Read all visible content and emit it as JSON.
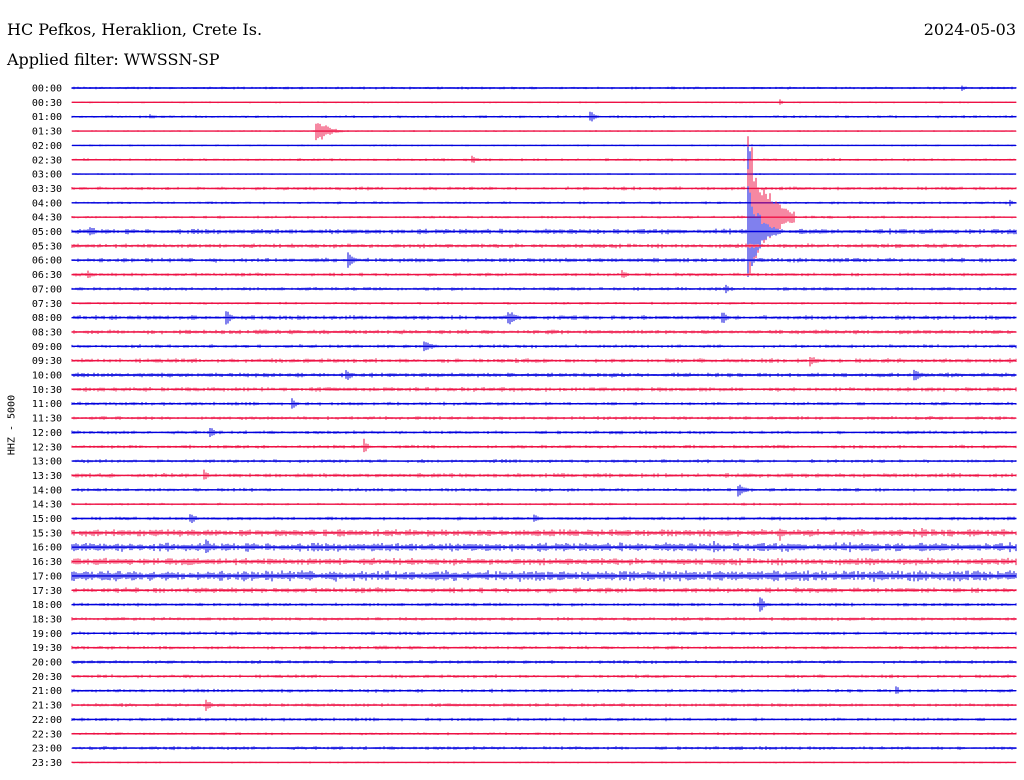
{
  "header": {
    "station": "HC Pefkos, Heraklion, Crete Is.",
    "date": "2024-05-03",
    "filter": "Applied filter: WWSSN-SP",
    "channel": "HHZ - 5000"
  },
  "colors": {
    "blue": "#0000dd",
    "red": "#ee1144"
  },
  "chart_data": {
    "type": "line",
    "title": "HC Pefkos, Heraklion, Crete Is.",
    "date": "2024-05-03",
    "ylabel": "HHZ - 5000",
    "row_minutes": 30,
    "rows": [
      "00:00",
      "00:30",
      "01:00",
      "01:30",
      "02:00",
      "02:30",
      "03:00",
      "03:30",
      "04:00",
      "04:30",
      "05:00",
      "05:30",
      "06:00",
      "06:30",
      "07:00",
      "07:30",
      "08:00",
      "08:30",
      "09:00",
      "09:30",
      "10:00",
      "10:30",
      "11:00",
      "11:30",
      "12:00",
      "12:30",
      "13:00",
      "13:30",
      "14:00",
      "14:30",
      "15:00",
      "15:30",
      "16:00",
      "16:30",
      "17:00",
      "17:30",
      "18:00",
      "18:30",
      "19:00",
      "19:30",
      "20:00",
      "20:30",
      "21:00",
      "21:30",
      "22:00",
      "22:30",
      "23:00",
      "23:30"
    ],
    "row_colors": [
      "blue",
      "red"
    ],
    "noise": [
      1.5,
      1,
      1.5,
      1,
      1,
      1.5,
      1,
      2,
      1.5,
      1.5,
      3,
      2.5,
      2.5,
      2,
      2,
      1.5,
      2.5,
      2.5,
      2,
      2.5,
      2.5,
      2.5,
      2,
      2,
      2,
      2,
      2,
      2.5,
      2,
      1.5,
      2,
      4,
      5,
      4,
      6,
      3,
      2,
      2,
      2,
      2,
      2,
      2,
      2,
      2,
      2,
      1.5,
      2,
      1
    ],
    "events": [
      {
        "row": 0,
        "minute": 28.3,
        "amp": 3,
        "dur": 0.4
      },
      {
        "row": 1,
        "minute": 22.5,
        "amp": 3,
        "dur": 0.3
      },
      {
        "row": 2,
        "minute": 2.5,
        "amp": 3,
        "dur": 0.5
      },
      {
        "row": 2,
        "minute": 16.5,
        "amp": 6,
        "dur": 0.4
      },
      {
        "row": 3,
        "minute": 7.8,
        "amp": 14,
        "dur": 0.9
      },
      {
        "row": 5,
        "minute": 12.7,
        "amp": 5,
        "dur": 0.5
      },
      {
        "row": 6,
        "minute": 21.5,
        "amp": 60,
        "dur": 0.1
      },
      {
        "row": 7,
        "minute": 21.5,
        "amp": 80,
        "dur": 0.1
      },
      {
        "row": 8,
        "minute": 21.5,
        "amp": 70,
        "dur": 0.3
      },
      {
        "row": 8,
        "minute": 29.8,
        "amp": 4,
        "dur": 0.3
      },
      {
        "row": 9,
        "minute": 21.5,
        "amp": 90,
        "dur": 1.5
      },
      {
        "row": 10,
        "minute": 0.6,
        "amp": 6,
        "dur": 0.6
      },
      {
        "row": 10,
        "minute": 21.5,
        "amp": 50,
        "dur": 1.0
      },
      {
        "row": 12,
        "minute": 8.8,
        "amp": 9,
        "dur": 0.5
      },
      {
        "row": 13,
        "minute": 0.5,
        "amp": 5,
        "dur": 0.5
      },
      {
        "row": 13,
        "minute": 17.5,
        "amp": 5,
        "dur": 0.4
      },
      {
        "row": 14,
        "minute": 20.8,
        "amp": 5,
        "dur": 0.3
      },
      {
        "row": 16,
        "minute": 4.9,
        "amp": 9,
        "dur": 0.5
      },
      {
        "row": 16,
        "minute": 13.9,
        "amp": 8,
        "dur": 0.6
      },
      {
        "row": 16,
        "minute": 20.7,
        "amp": 6,
        "dur": 0.5
      },
      {
        "row": 18,
        "minute": 11.2,
        "amp": 5,
        "dur": 1.0
      },
      {
        "row": 19,
        "minute": 23.5,
        "amp": 6,
        "dur": 0.6
      },
      {
        "row": 20,
        "minute": 8.7,
        "amp": 8,
        "dur": 0.5
      },
      {
        "row": 20,
        "minute": 26.8,
        "amp": 7,
        "dur": 0.5
      },
      {
        "row": 22,
        "minute": 7.0,
        "amp": 7,
        "dur": 0.4
      },
      {
        "row": 24,
        "minute": 4.4,
        "amp": 8,
        "dur": 0.3
      },
      {
        "row": 25,
        "minute": 9.3,
        "amp": 9,
        "dur": 0.3
      },
      {
        "row": 27,
        "minute": 4.2,
        "amp": 6,
        "dur": 0.4
      },
      {
        "row": 28,
        "minute": 21.2,
        "amp": 7,
        "dur": 0.6
      },
      {
        "row": 30,
        "minute": 3.8,
        "amp": 6,
        "dur": 0.5
      },
      {
        "row": 30,
        "minute": 14.7,
        "amp": 6,
        "dur": 0.4
      },
      {
        "row": 31,
        "minute": 22.5,
        "amp": 8,
        "dur": 0.4
      },
      {
        "row": 31,
        "minute": 27.0,
        "amp": 8,
        "dur": 0.5
      },
      {
        "row": 32,
        "minute": 4.3,
        "amp": 8,
        "dur": 0.5
      },
      {
        "row": 32,
        "minute": 20.4,
        "amp": 7,
        "dur": 0.3
      },
      {
        "row": 36,
        "minute": 21.9,
        "amp": 8,
        "dur": 0.4
      },
      {
        "row": 42,
        "minute": 26.2,
        "amp": 6,
        "dur": 0.3
      },
      {
        "row": 43,
        "minute": 4.3,
        "amp": 6,
        "dur": 0.4
      }
    ]
  }
}
